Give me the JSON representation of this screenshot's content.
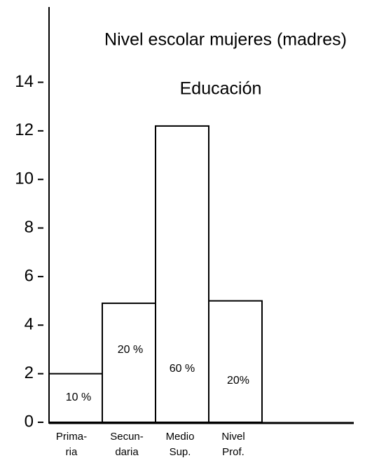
{
  "chart_data": {
    "type": "bar",
    "title": "Nivel escolar mujeres (madres)",
    "subtitle": "Educación",
    "categories": [
      [
        "Prima-",
        "ria"
      ],
      [
        "Secun-",
        "daria"
      ],
      [
        "Medio",
        "Sup."
      ],
      [
        "Nivel",
        "Prof."
      ]
    ],
    "values": [
      2,
      4.9,
      12.2,
      5.0
    ],
    "annotations": [
      "10 %",
      "20 %",
      "60 %",
      "20%"
    ],
    "color": "#ffffff",
    "ylim": [
      0,
      17.1
    ],
    "yticks": [
      0,
      2,
      4,
      6,
      8,
      10,
      12,
      14
    ],
    "grid": false
  }
}
